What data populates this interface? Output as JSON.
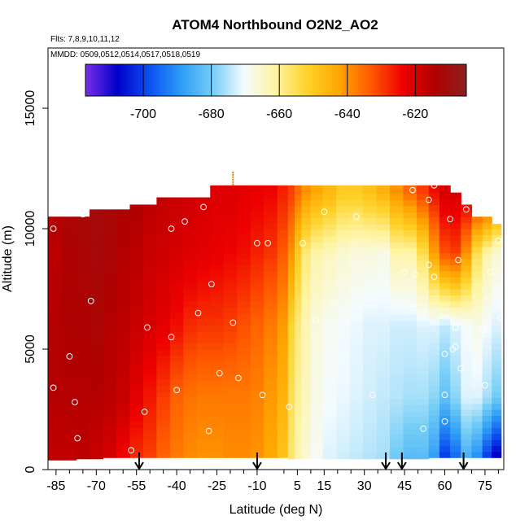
{
  "chart_data": {
    "type": "heatmap",
    "title": "ATOM4 Northbound O2N2_AO2",
    "subtitle_flights": "Flts: 7,8,9,10,11,12",
    "subtitle_dates": "MMDD: 0509,0512,0514,0517,0518,0519",
    "xlabel": "Latitude (deg N)",
    "ylabel": "Altitude (m)",
    "xlim": [
      -88,
      82
    ],
    "ylim": [
      0,
      17500
    ],
    "x_ticks": [
      -85,
      -70,
      -55,
      -40,
      -25,
      -10,
      5,
      15,
      30,
      45,
      60,
      75
    ],
    "x_minor_ticks": [
      -80,
      -75,
      -65,
      -60,
      -50,
      -45,
      -35,
      -30,
      -20,
      -15,
      0,
      10,
      20,
      25,
      35,
      40,
      50,
      55,
      65,
      70,
      80
    ],
    "y_ticks": [
      0,
      5000,
      10000,
      15000
    ],
    "colorbar": {
      "min": -717,
      "max": -605,
      "ticks": [
        -700,
        -680,
        -660,
        -640,
        -620
      ],
      "colors": [
        "#7a2ee8",
        "#0000c8",
        "#0c4ff0",
        "#2c9bf5",
        "#74cdf6",
        "#f4fbff",
        "#fff4a0",
        "#ffd22a",
        "#ffa500",
        "#ff5a00",
        "#ee0000",
        "#b00000",
        "#8b2020"
      ]
    },
    "field": {
      "columns": [
        {
          "lat": -86,
          "top": 10500,
          "bottom": 400,
          "values": [
            -614,
            -616,
            -615,
            -615,
            -617
          ]
        },
        {
          "lat": -80,
          "top": 10500,
          "bottom": 400,
          "values": [
            -613,
            -614,
            -614,
            -615,
            -617
          ]
        },
        {
          "lat": -75,
          "top": 10500,
          "bottom": 450,
          "values": [
            -612,
            -613,
            -614,
            -615,
            -616
          ]
        },
        {
          "lat": -70,
          "top": 10800,
          "bottom": 450,
          "values": [
            -611,
            -612,
            -613,
            -615,
            -618
          ]
        },
        {
          "lat": -65,
          "top": 10800,
          "bottom": 500,
          "values": [
            -612,
            -613,
            -615,
            -616,
            -620
          ]
        },
        {
          "lat": -60,
          "top": 10800,
          "bottom": 500,
          "values": [
            -613,
            -615,
            -616,
            -618,
            -624
          ]
        },
        {
          "lat": -55,
          "top": 11000,
          "bottom": 500,
          "values": [
            -614,
            -616,
            -618,
            -622,
            -628
          ]
        },
        {
          "lat": -50,
          "top": 11000,
          "bottom": 500,
          "values": [
            -616,
            -618,
            -620,
            -626,
            -630
          ]
        },
        {
          "lat": -45,
          "top": 11300,
          "bottom": 500,
          "values": [
            -617,
            -619,
            -622,
            -630,
            -634
          ]
        },
        {
          "lat": -40,
          "top": 11300,
          "bottom": 500,
          "values": [
            -618,
            -620,
            -625,
            -634,
            -637
          ]
        },
        {
          "lat": -35,
          "top": 11300,
          "bottom": 500,
          "values": [
            -619,
            -621,
            -628,
            -636,
            -639
          ]
        },
        {
          "lat": -30,
          "top": 11300,
          "bottom": 500,
          "values": [
            -620,
            -622,
            -629,
            -637,
            -640
          ]
        },
        {
          "lat": -25,
          "top": 11800,
          "bottom": 500,
          "values": [
            -621,
            -623,
            -629,
            -637,
            -640
          ]
        },
        {
          "lat": -20,
          "top": 11800,
          "bottom": 500,
          "values": [
            -621,
            -624,
            -630,
            -637,
            -639
          ]
        },
        {
          "lat": -15,
          "top": 11800,
          "bottom": 500,
          "values": [
            -622,
            -625,
            -632,
            -637,
            -639
          ]
        },
        {
          "lat": -10,
          "top": 11800,
          "bottom": 500,
          "values": [
            -623,
            -627,
            -634,
            -638,
            -640
          ]
        },
        {
          "lat": -5,
          "top": 11800,
          "bottom": 500,
          "values": [
            -624,
            -629,
            -637,
            -641,
            -643
          ]
        },
        {
          "lat": 0,
          "top": 11800,
          "bottom": 500,
          "values": [
            -627,
            -633,
            -641,
            -645,
            -648
          ]
        },
        {
          "lat": 3,
          "top": 11800,
          "bottom": 450,
          "values": [
            -630,
            -640,
            -652,
            -655,
            -657
          ]
        },
        {
          "lat": 5,
          "top": 11800,
          "bottom": 450,
          "values": [
            -635,
            -650,
            -658,
            -660,
            -662
          ]
        },
        {
          "lat": 8,
          "top": 11800,
          "bottom": 450,
          "values": [
            -640,
            -658,
            -663,
            -664,
            -666
          ]
        },
        {
          "lat": 12,
          "top": 11800,
          "bottom": 450,
          "values": [
            -643,
            -662,
            -667,
            -668,
            -669
          ]
        },
        {
          "lat": 17,
          "top": 11800,
          "bottom": 450,
          "values": [
            -646,
            -664,
            -669,
            -670,
            -672
          ]
        },
        {
          "lat": 22,
          "top": 11800,
          "bottom": 450,
          "values": [
            -650,
            -666,
            -670,
            -671,
            -673
          ]
        },
        {
          "lat": 27,
          "top": 11800,
          "bottom": 450,
          "values": [
            -650,
            -667,
            -671,
            -672,
            -674
          ]
        },
        {
          "lat": 32,
          "top": 11800,
          "bottom": 450,
          "values": [
            -648,
            -667,
            -672,
            -673,
            -675
          ]
        },
        {
          "lat": 37,
          "top": 11800,
          "bottom": 450,
          "values": [
            -645,
            -668,
            -672,
            -674,
            -676
          ]
        },
        {
          "lat": 42,
          "top": 11800,
          "bottom": 450,
          "values": [
            -640,
            -662,
            -673,
            -675,
            -680
          ]
        },
        {
          "lat": 47,
          "top": 11800,
          "bottom": 450,
          "values": [
            -635,
            -662,
            -673,
            -676,
            -683
          ]
        },
        {
          "lat": 52,
          "top": 11800,
          "bottom": 450,
          "values": [
            -630,
            -655,
            -672,
            -676,
            -683
          ]
        },
        {
          "lat": 56,
          "top": 11800,
          "bottom": 500,
          "values": [
            -625,
            -642,
            -672,
            -678,
            -688
          ]
        },
        {
          "lat": 60,
          "top": 11800,
          "bottom": 500,
          "values": [
            -620,
            -632,
            -674,
            -682,
            -700
          ]
        },
        {
          "lat": 64,
          "top": 11500,
          "bottom": 500,
          "values": [
            -620,
            -630,
            -672,
            -678,
            -695
          ]
        },
        {
          "lat": 68,
          "top": 11000,
          "bottom": 500,
          "values": [
            -620,
            -640,
            -670,
            -672,
            -685
          ]
        },
        {
          "lat": 72,
          "top": 10500,
          "bottom": 500,
          "values": [
            -622,
            -655,
            -668,
            -672,
            -690
          ]
        },
        {
          "lat": 76,
          "top": 10500,
          "bottom": 500,
          "values": [
            -624,
            -662,
            -670,
            -676,
            -700
          ]
        },
        {
          "lat": 79,
          "top": 10200,
          "bottom": 500,
          "values": [
            -630,
            -666,
            -672,
            -680,
            -708
          ]
        }
      ],
      "altitude_levels": [
        11500,
        9000,
        6000,
        3000,
        600
      ]
    },
    "sample_points": [
      {
        "lat": -86,
        "alt": 10000
      },
      {
        "lat": -75,
        "alt": 10600
      },
      {
        "lat": -72,
        "alt": 7000
      },
      {
        "lat": -80,
        "alt": 4700
      },
      {
        "lat": -78,
        "alt": 2800
      },
      {
        "lat": -86,
        "alt": 3400
      },
      {
        "lat": -77,
        "alt": 1300
      },
      {
        "lat": -57,
        "alt": 800
      },
      {
        "lat": -52,
        "alt": 2400
      },
      {
        "lat": -51,
        "alt": 5900
      },
      {
        "lat": -42,
        "alt": 5500
      },
      {
        "lat": -40,
        "alt": 3300
      },
      {
        "lat": -42,
        "alt": 10000
      },
      {
        "lat": -37,
        "alt": 10300
      },
      {
        "lat": -30,
        "alt": 10900
      },
      {
        "lat": -32,
        "alt": 6500
      },
      {
        "lat": -27,
        "alt": 7700
      },
      {
        "lat": -19,
        "alt": 6100
      },
      {
        "lat": -24,
        "alt": 4000
      },
      {
        "lat": -17,
        "alt": 3800
      },
      {
        "lat": -28,
        "alt": 1600
      },
      {
        "lat": -10,
        "alt": 9400
      },
      {
        "lat": -6,
        "alt": 9400
      },
      {
        "lat": -8,
        "alt": 3100
      },
      {
        "lat": 2,
        "alt": 2600
      },
      {
        "lat": 7,
        "alt": 9400
      },
      {
        "lat": 12,
        "alt": 6200
      },
      {
        "lat": 18,
        "alt": 6900
      },
      {
        "lat": 15,
        "alt": 10700
      },
      {
        "lat": 27,
        "alt": 10500
      },
      {
        "lat": 33,
        "alt": 3100
      },
      {
        "lat": 48,
        "alt": 11600
      },
      {
        "lat": 45,
        "alt": 8200
      },
      {
        "lat": 49,
        "alt": 8100
      },
      {
        "lat": 54,
        "alt": 8500
      },
      {
        "lat": 56,
        "alt": 8000
      },
      {
        "lat": 48,
        "alt": 6700
      },
      {
        "lat": 60,
        "alt": 4800
      },
      {
        "lat": 63,
        "alt": 5000
      },
      {
        "lat": 64,
        "alt": 5100
      },
      {
        "lat": 64,
        "alt": 5900
      },
      {
        "lat": 60,
        "alt": 3100
      },
      {
        "lat": 60,
        "alt": 2000
      },
      {
        "lat": 52,
        "alt": 1700
      },
      {
        "lat": 66,
        "alt": 4200
      },
      {
        "lat": 75,
        "alt": 3500
      },
      {
        "lat": 74,
        "alt": 5800
      },
      {
        "lat": 77,
        "alt": 8200
      },
      {
        "lat": 80,
        "alt": 9500
      },
      {
        "lat": 81,
        "alt": 6300
      },
      {
        "lat": 54,
        "alt": 11200
      },
      {
        "lat": 65,
        "alt": 8700
      },
      {
        "lat": 62,
        "alt": 10400
      },
      {
        "lat": 68,
        "alt": 10800
      },
      {
        "lat": 75,
        "alt": 10800
      },
      {
        "lat": -55,
        "alt": 150
      },
      {
        "lat": -48,
        "alt": 150
      },
      {
        "lat": -40,
        "alt": 150
      },
      {
        "lat": -34,
        "alt": 150
      },
      {
        "lat": -26,
        "alt": 150
      },
      {
        "lat": -19,
        "alt": 150
      },
      {
        "lat": -8,
        "alt": 150
      },
      {
        "lat": 2,
        "alt": 150
      },
      {
        "lat": 10,
        "alt": 150
      },
      {
        "lat": 17,
        "alt": 150
      },
      {
        "lat": 27,
        "alt": 150
      },
      {
        "lat": 45,
        "alt": 150
      },
      {
        "lat": 59,
        "alt": 150
      },
      {
        "lat": 63,
        "alt": 150
      },
      {
        "lat": 66,
        "alt": 150
      },
      {
        "lat": 72,
        "alt": 150
      },
      {
        "lat": 77,
        "alt": 150
      },
      {
        "lat": 64,
        "alt": 300
      },
      {
        "lat": 56,
        "alt": 11800
      }
    ],
    "profile_arrows": [
      -54,
      -10,
      38,
      44,
      67
    ],
    "max_altitude_marker": {
      "lat": -19,
      "from": 11800,
      "to": 12400
    }
  }
}
